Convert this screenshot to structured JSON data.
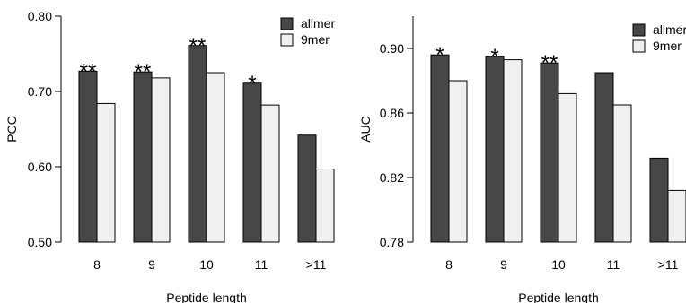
{
  "chart_data": [
    {
      "type": "bar",
      "title": "",
      "xlabel": "Peptide length",
      "ylabel": "PCC",
      "ylim": [
        0.5,
        0.8
      ],
      "yticks": [
        "0.50",
        "0.60",
        "0.70",
        "0.80"
      ],
      "categories": [
        "8",
        "9",
        "10",
        "11",
        ">11"
      ],
      "series": [
        {
          "name": "allmer",
          "color": "#474747",
          "values": [
            0.727,
            0.726,
            0.761,
            0.711,
            0.642
          ]
        },
        {
          "name": "9mer",
          "color": "#f0f0f0",
          "values": [
            0.684,
            0.718,
            0.725,
            0.682,
            0.597
          ]
        }
      ],
      "significance": [
        "**",
        "**",
        "**",
        "*",
        ""
      ],
      "legend": "top-right",
      "grid": false
    },
    {
      "type": "bar",
      "title": "",
      "xlabel": "Peptide length",
      "ylabel": "AUC",
      "ylim": [
        0.78,
        0.92
      ],
      "yticks": [
        "0.78",
        "0.82",
        "0.86",
        "0.90"
      ],
      "categories": [
        "8",
        "9",
        "10",
        "11",
        ">11"
      ],
      "series": [
        {
          "name": "allmer",
          "color": "#474747",
          "values": [
            0.896,
            0.895,
            0.891,
            0.885,
            0.832
          ]
        },
        {
          "name": "9mer",
          "color": "#f0f0f0",
          "values": [
            0.88,
            0.893,
            0.872,
            0.865,
            0.812
          ]
        }
      ],
      "significance": [
        "*",
        "*",
        "**",
        "",
        ""
      ],
      "legend": "top-right",
      "grid": false
    }
  ]
}
